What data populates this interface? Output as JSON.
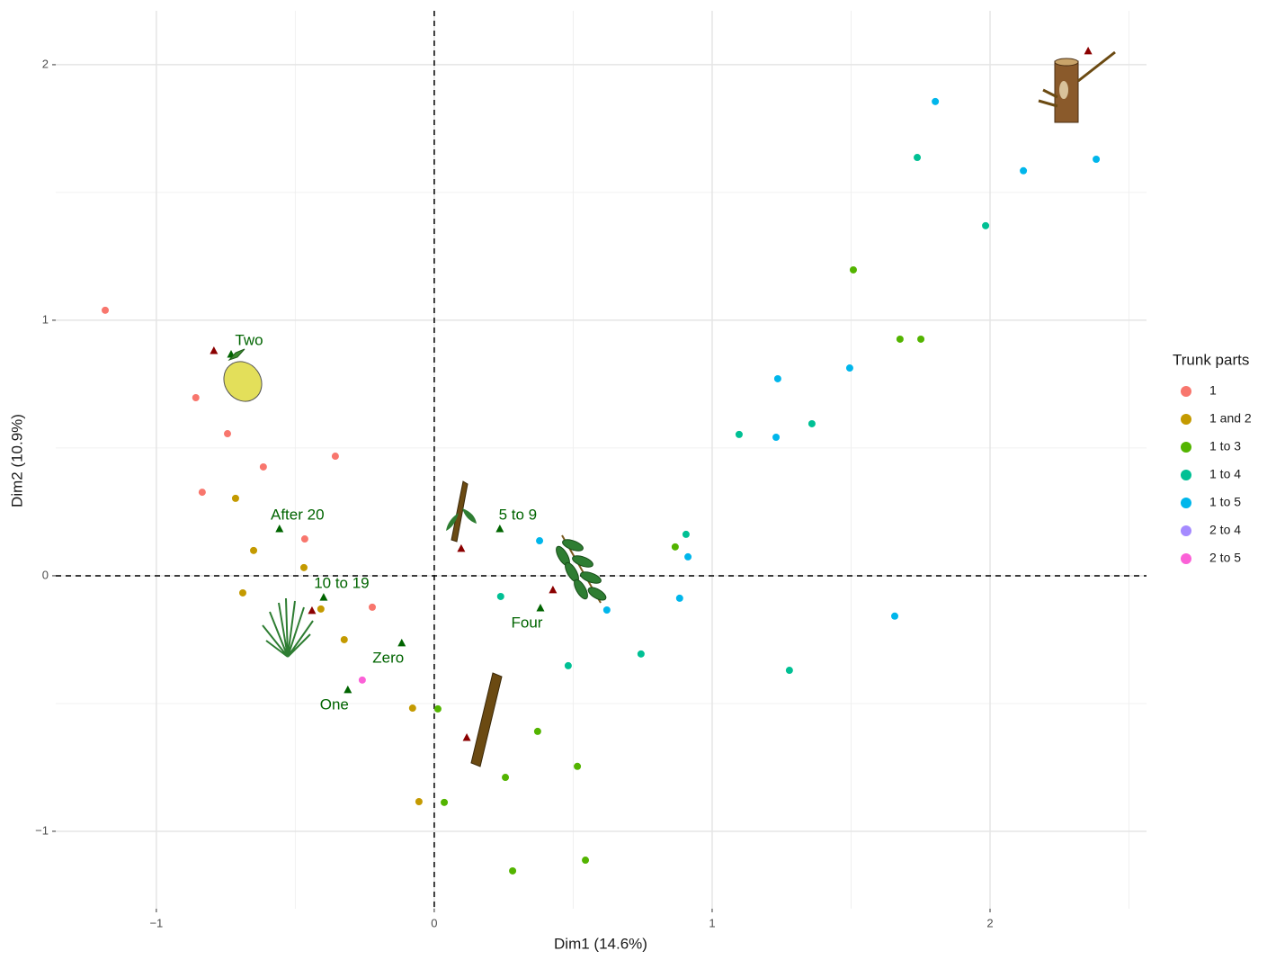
{
  "chart_data": {
    "type": "scatter",
    "x_label": "Dim1 (14.6%)",
    "y_label": "Dim2 (10.9%)",
    "xlim": [
      -1.362,
      2.563
    ],
    "ylim": [
      -1.303,
      2.211
    ],
    "xticks": [
      {
        "value": -1,
        "label": "−1"
      },
      0,
      1,
      2
    ],
    "yticks": [
      {
        "value": -1,
        "label": "−1"
      },
      0,
      1,
      2
    ],
    "xminorticks": [
      -0.5,
      0.5,
      1.5,
      2.5
    ],
    "yminorticks": [
      -0.5,
      0.5,
      1.5
    ],
    "grid": true,
    "hline": 0,
    "vline": 0,
    "legend_title": "Trunk parts",
    "legend_position": "right",
    "series": [
      {
        "name": "1",
        "color": "#F8766D",
        "x": [
          -1.184,
          -0.858,
          -0.744,
          -0.615,
          -0.835,
          -0.356,
          -0.466,
          -0.223
        ],
        "y": [
          1.039,
          0.697,
          0.556,
          0.426,
          0.327,
          0.468,
          0.144,
          -0.123
        ]
      },
      {
        "name": "1 and 2",
        "color": "#C49A00",
        "x": [
          -0.715,
          -0.65,
          -0.469,
          -0.689,
          -0.408,
          -0.324,
          -0.078,
          -0.055
        ],
        "y": [
          0.303,
          0.099,
          0.032,
          -0.067,
          -0.13,
          -0.25,
          -0.518,
          -0.884
        ]
      },
      {
        "name": "1 to 3",
        "color": "#53B400",
        "x": [
          1.508,
          1.676,
          1.751,
          0.867,
          0.372,
          0.013,
          0.036,
          0.256,
          0.515,
          0.282,
          0.544
        ],
        "y": [
          1.197,
          0.926,
          0.926,
          0.113,
          -0.609,
          -0.521,
          -0.887,
          -0.789,
          -0.746,
          -1.155,
          -1.113
        ]
      },
      {
        "name": "1 to 4",
        "color": "#00C094",
        "x": [
          1.738,
          1.984,
          1.359,
          1.097,
          0.906,
          0.239,
          0.482,
          0.744,
          1.278
        ],
        "y": [
          1.637,
          1.37,
          0.595,
          0.553,
          0.162,
          -0.081,
          -0.352,
          -0.306,
          -0.37
        ]
      },
      {
        "name": "1 to 5",
        "color": "#00B6EB",
        "x": [
          1.803,
          2.12,
          2.382,
          1.236,
          1.495,
          1.23,
          0.379,
          0.913,
          0.621,
          0.883,
          1.657
        ],
        "y": [
          1.856,
          1.585,
          1.63,
          0.771,
          0.813,
          0.542,
          0.137,
          0.074,
          -0.134,
          -0.088,
          -0.158
        ]
      },
      {
        "name": "2 to 4",
        "color": "#A58AFF",
        "x": [],
        "y": []
      },
      {
        "name": "2 to 5",
        "color": "#FB61D7",
        "x": [
          -0.259
        ],
        "y": [
          -0.408
        ]
      }
    ],
    "labeled_points": {
      "color": "#006400",
      "labels": [
        "Two",
        "After 20",
        "5 to 9",
        "10 to 19",
        "Four",
        "Zero",
        "One"
      ],
      "x": [
        -0.731,
        -0.557,
        0.236,
        -0.398,
        0.382,
        -0.117,
        -0.311
      ],
      "y": [
        0.866,
        0.183,
        0.183,
        -0.085,
        -0.127,
        -0.264,
        -0.447
      ]
    },
    "extra_points": {
      "color": "#8B0000",
      "x": [
        -0.793,
        0.097,
        0.427,
        -0.44,
        0.117,
        2.353
      ],
      "y": [
        0.88,
        0.106,
        -0.056,
        -0.137,
        -0.634,
        2.053
      ]
    }
  }
}
